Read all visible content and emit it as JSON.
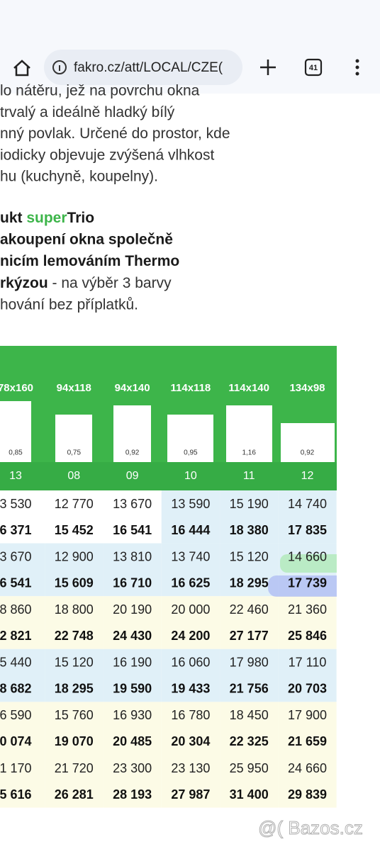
{
  "browser": {
    "url": "fakro.cz/att/LOCAL/CZE(",
    "tabs": "41"
  },
  "paragraph": [
    "lo nátěru, jež na povrchu okna",
    "trvalý a ideálně hladký bílý",
    "nný povlak. Určené do prostor, kde",
    "iodicky objevuje zvýšená vlhkost",
    "hu (kuchyně, koupelny)."
  ],
  "heading": [
    [
      {
        "text": "ukt ",
        "style": "bold"
      },
      {
        "text": "super",
        "style": "green"
      },
      {
        "text": "Trio",
        "style": "bold"
      }
    ],
    [
      {
        "text": "akoupení okna společně",
        "style": "bold"
      }
    ],
    [
      {
        "text": "nicím lemováním Thermo",
        "style": "bold"
      }
    ],
    [
      {
        "text": "rkýzou",
        "style": "bold"
      },
      {
        "text": " - na výběr 3 barvy",
        "style": "normal"
      }
    ],
    [
      {
        "text": "hování bez příplatků.",
        "style": "normal"
      }
    ]
  ],
  "table": {
    "columns": [
      {
        "size": "78x160",
        "area": "0,85",
        "code": "13"
      },
      {
        "size": "94x118",
        "area": "0,75",
        "code": "08"
      },
      {
        "size": "94x140",
        "area": "0,92",
        "code": "09"
      },
      {
        "size": "114x118",
        "area": "0,95",
        "code": "10"
      },
      {
        "size": "114x140",
        "area": "1,16",
        "code": "11"
      },
      {
        "size": "134x98",
        "area": "0,92",
        "code": "12"
      }
    ],
    "rows": [
      {
        "bg": [
          "#ffffff",
          "#ffffff",
          "#ffffff",
          "#e0f0f8",
          "#e0f0f8",
          "#e0f0f8"
        ],
        "price": [
          "3 530",
          "12 770",
          "13 670",
          "13 590",
          "15 190",
          "14 740"
        ],
        "price_vat": [
          "6 371",
          "15 452",
          "16 541",
          "16 444",
          "18 380",
          "17 835"
        ]
      },
      {
        "bg": [
          "#e0f0f8",
          "#e0f0f8",
          "#e0f0f8",
          "#e0f0f8",
          "#e0f0f8",
          "#e0f0f8"
        ],
        "price": [
          "3 670",
          "12 900",
          "13 810",
          "13 740",
          "15 120",
          "14 660"
        ],
        "price_vat": [
          "6 541",
          "15 609",
          "16 710",
          "16 625",
          "18 295",
          "17 739"
        ]
      },
      {
        "bg": [
          "#fcfbe6",
          "#fcfbe6",
          "#fcfbe6",
          "#fcfbe6",
          "#fcfbe6",
          "#fcfbe6"
        ],
        "price": [
          "8 860",
          "18 800",
          "20 190",
          "20 000",
          "22 460",
          "21 360"
        ],
        "price_vat": [
          "2 821",
          "22 748",
          "24 430",
          "24 200",
          "27 177",
          "25 846"
        ]
      },
      {
        "bg": [
          "#e0f0f8",
          "#e0f0f8",
          "#e0f0f8",
          "#e0f0f8",
          "#e0f0f8",
          "#e0f0f8"
        ],
        "price": [
          "5 440",
          "15 120",
          "16 190",
          "16 060",
          "17 980",
          "17 110"
        ],
        "price_vat": [
          "8 682",
          "18 295",
          "19 590",
          "19 433",
          "21 756",
          "20 703"
        ]
      },
      {
        "bg": [
          "#fcfbe6",
          "#fcfbe6",
          "#fcfbe6",
          "#fcfbe6",
          "#fcfbe6",
          "#fcfbe6"
        ],
        "price": [
          "6 590",
          "15 760",
          "16 930",
          "16 780",
          "18 450",
          "17 900"
        ],
        "price_vat": [
          "0 074",
          "19 070",
          "20 485",
          "20 304",
          "22 325",
          "21 659"
        ]
      },
      {
        "bg": [
          "#fcfbe6",
          "#fcfbe6",
          "#fcfbe6",
          "#fcfbe6",
          "#fcfbe6",
          "#fcfbe6"
        ],
        "price": [
          "1 170",
          "21 720",
          "23 300",
          "23 130",
          "25 950",
          "24 660"
        ],
        "price_vat": [
          "5 616",
          "26 281",
          "28 193",
          "27 987",
          "31 400",
          "29 839"
        ]
      }
    ]
  },
  "watermark": "@( Bazos.cz"
}
